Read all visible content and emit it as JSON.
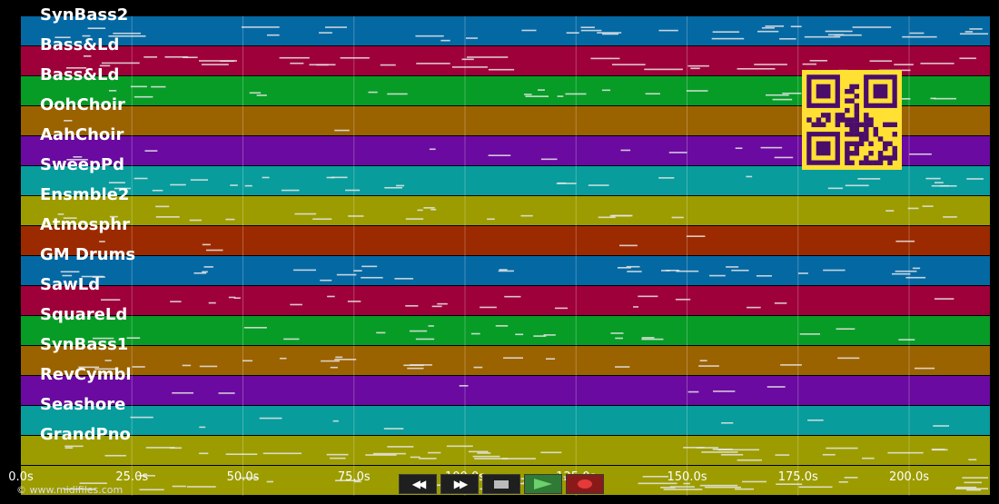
{
  "tracks": [
    {
      "name": "SynBass2",
      "color": "#0468a3"
    },
    {
      "name": "Bass&Ld",
      "color": "#9e0039"
    },
    {
      "name": "Bass&Ld",
      "color": "#079c26"
    },
    {
      "name": "OohChoir",
      "color": "#9b6200"
    },
    {
      "name": "AahChoir",
      "color": "#6a0aa0"
    },
    {
      "name": "SweepPd",
      "color": "#089c9c"
    },
    {
      "name": "Ensmble2",
      "color": "#9c9c00"
    },
    {
      "name": "Atmosphr",
      "color": "#9c2a00"
    },
    {
      "name": "GM Drums",
      "color": "#0468a3"
    },
    {
      "name": "SawLd",
      "color": "#9e0039"
    },
    {
      "name": "SquareLd",
      "color": "#079c26"
    },
    {
      "name": "SynBass1",
      "color": "#9b6200"
    },
    {
      "name": "RevCymbl",
      "color": "#6a0aa0"
    },
    {
      "name": "Seashore",
      "color": "#089c9c"
    },
    {
      "name": "GrandPno",
      "color": "#9c9c00"
    }
  ],
  "timeline": {
    "ticks": [
      "0.0s",
      "25.0s",
      "50.0s",
      "75.0s",
      "100.0s",
      "125.0s",
      "150.0s",
      "175.0s",
      "200.0s"
    ],
    "tick_seconds": [
      0,
      25,
      50,
      75,
      100,
      125,
      150,
      175,
      200
    ],
    "max_seconds": 218
  },
  "copyright": "© www.midifiles.com",
  "controls": {
    "rewind_icon": "rewind-icon",
    "fast_forward_icon": "fast-forward-icon",
    "stop_icon": "stop-icon",
    "play_icon": "play-icon",
    "record_icon": "record-icon"
  },
  "qr": {
    "fg": "#ffe033",
    "bg": "#4a0d6a"
  }
}
